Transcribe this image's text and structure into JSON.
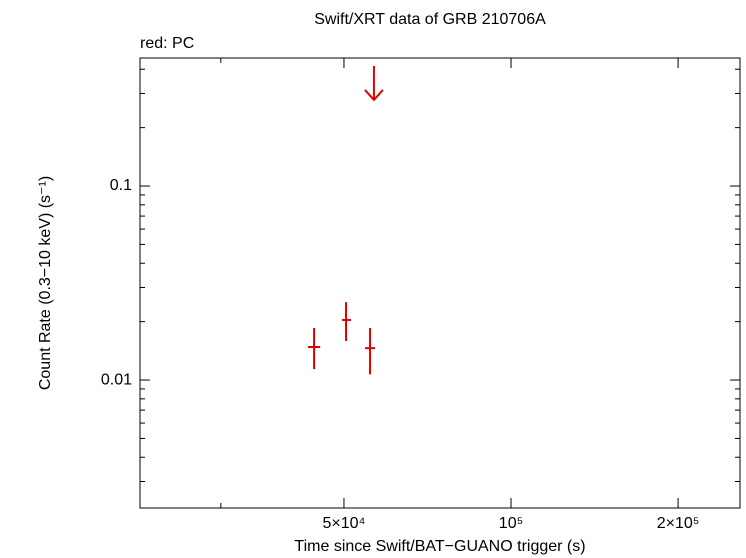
{
  "chart_data": {
    "type": "scatter",
    "title": "Swift/XRT data of GRB 210706A",
    "subtitle": "red: PC",
    "x_label": "Time since Swift/BAT−GUANO trigger (s)",
    "y_label": "Count Rate (0.3−10 keV) (s⁻¹)",
    "xscale": "log",
    "yscale": "log",
    "xlim": [
      21450,
      258600
    ],
    "ylim": [
      0.00219,
      0.457
    ],
    "xticks": [
      {
        "value": 50000,
        "label": "5×10⁴"
      },
      {
        "value": 100000,
        "label": "10⁵"
      },
      {
        "value": 200000,
        "label": "2×10⁵"
      }
    ],
    "xminor": [
      30000
    ],
    "yticks": [
      0.01,
      0.1
    ],
    "yminor": [
      0.003,
      0.004,
      0.005,
      0.006,
      0.007,
      0.008,
      0.009,
      0.02,
      0.03,
      0.04,
      0.05,
      0.06,
      0.07,
      0.08,
      0.09,
      0.2,
      0.3,
      0.4
    ],
    "series": [
      {
        "name": "PC",
        "color": "#e00000",
        "x": [
          44170,
          50430,
          55710
        ],
        "x_lower": [
          43050,
          49600,
          54570
        ],
        "x_upper": [
          45300,
          51480,
          56880
        ],
        "values": [
          0.0148,
          0.0204,
          0.0146
        ],
        "y_lower": [
          0.01139,
          0.0159,
          0.0107
        ],
        "y_upper": [
          0.01854,
          0.0252,
          0.01854
        ]
      }
    ],
    "upper_limits": {
      "color": "#e00000",
      "x": [
        56620
      ],
      "values": [
        0.416
      ]
    }
  }
}
